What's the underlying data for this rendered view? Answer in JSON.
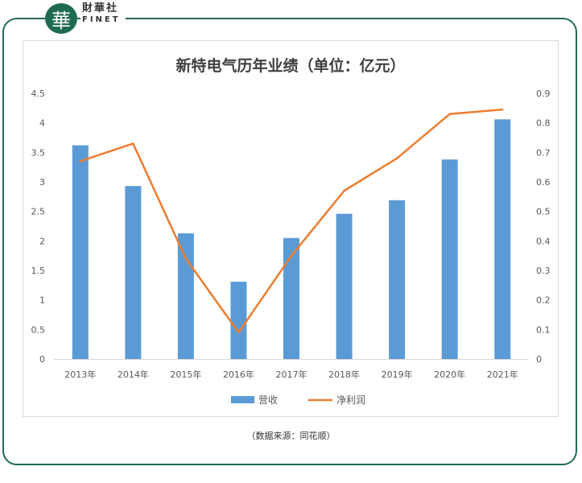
{
  "brand": {
    "logo_char": "華",
    "name_cn": "財華社",
    "name_en": "FINET",
    "frame_color": "#1f6b52"
  },
  "chart_data": {
    "type": "bar",
    "title": "新特电气历年业绩（单位：亿元）",
    "categories": [
      "2013年",
      "2014年",
      "2015年",
      "2016年",
      "2017年",
      "2018年",
      "2019年",
      "2020年",
      "2021年"
    ],
    "series": [
      {
        "name": "营收",
        "type": "bar",
        "axis": "left",
        "color": "#5b9bd5",
        "values": [
          3.62,
          2.93,
          2.13,
          1.31,
          2.05,
          2.46,
          2.69,
          3.38,
          4.06
        ]
      },
      {
        "name": "净利润",
        "type": "line",
        "axis": "right",
        "color": "#ed7d31",
        "values": [
          0.67,
          0.73,
          0.34,
          0.09,
          0.35,
          0.57,
          0.68,
          0.83,
          0.845
        ]
      }
    ],
    "left_axis": {
      "min": 0,
      "max": 4.5,
      "ticks": [
        "0",
        "0.5",
        "1",
        "1.5",
        "2",
        "2.5",
        "3",
        "3.5",
        "4",
        "4.5"
      ]
    },
    "right_axis": {
      "min": 0,
      "max": 0.9,
      "ticks": [
        "0",
        "0.1",
        "0.2",
        "0.3",
        "0.4",
        "0.5",
        "0.6",
        "0.7",
        "0.8",
        "0.9"
      ]
    },
    "legend_position": "bottom",
    "grid": false
  },
  "source_text": "（数据来源：同花顺）"
}
